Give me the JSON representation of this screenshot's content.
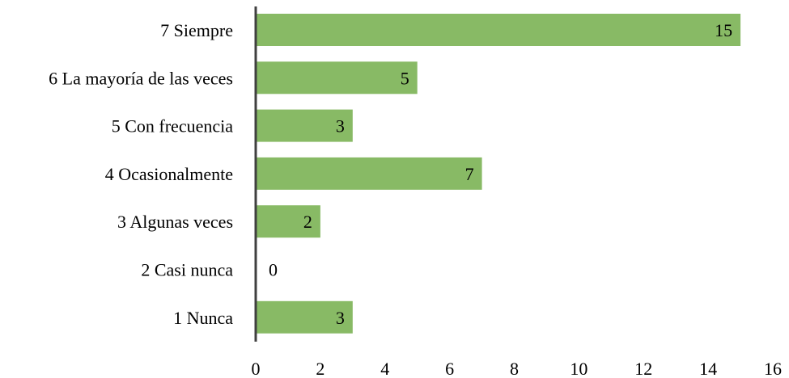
{
  "chart_data": {
    "type": "bar",
    "orientation": "horizontal",
    "title": "",
    "xlabel": "",
    "ylabel": "",
    "categories": [
      "7 Siempre",
      "6 La mayoría de las veces",
      "5 Con frecuencia",
      "4 Ocasionalmente",
      "3 Algunas veces",
      "2 Casi nunca",
      "1 Nunca"
    ],
    "values": [
      15,
      5,
      3,
      7,
      2,
      0,
      3
    ],
    "xlim": [
      0,
      16
    ],
    "xticks": [
      0,
      2,
      4,
      6,
      8,
      10,
      12,
      14,
      16
    ],
    "grid": false,
    "legend": "none",
    "data_labels": true,
    "colors": {
      "bar": "#88ba65",
      "axis": "#404040",
      "text": "#000000"
    }
  }
}
